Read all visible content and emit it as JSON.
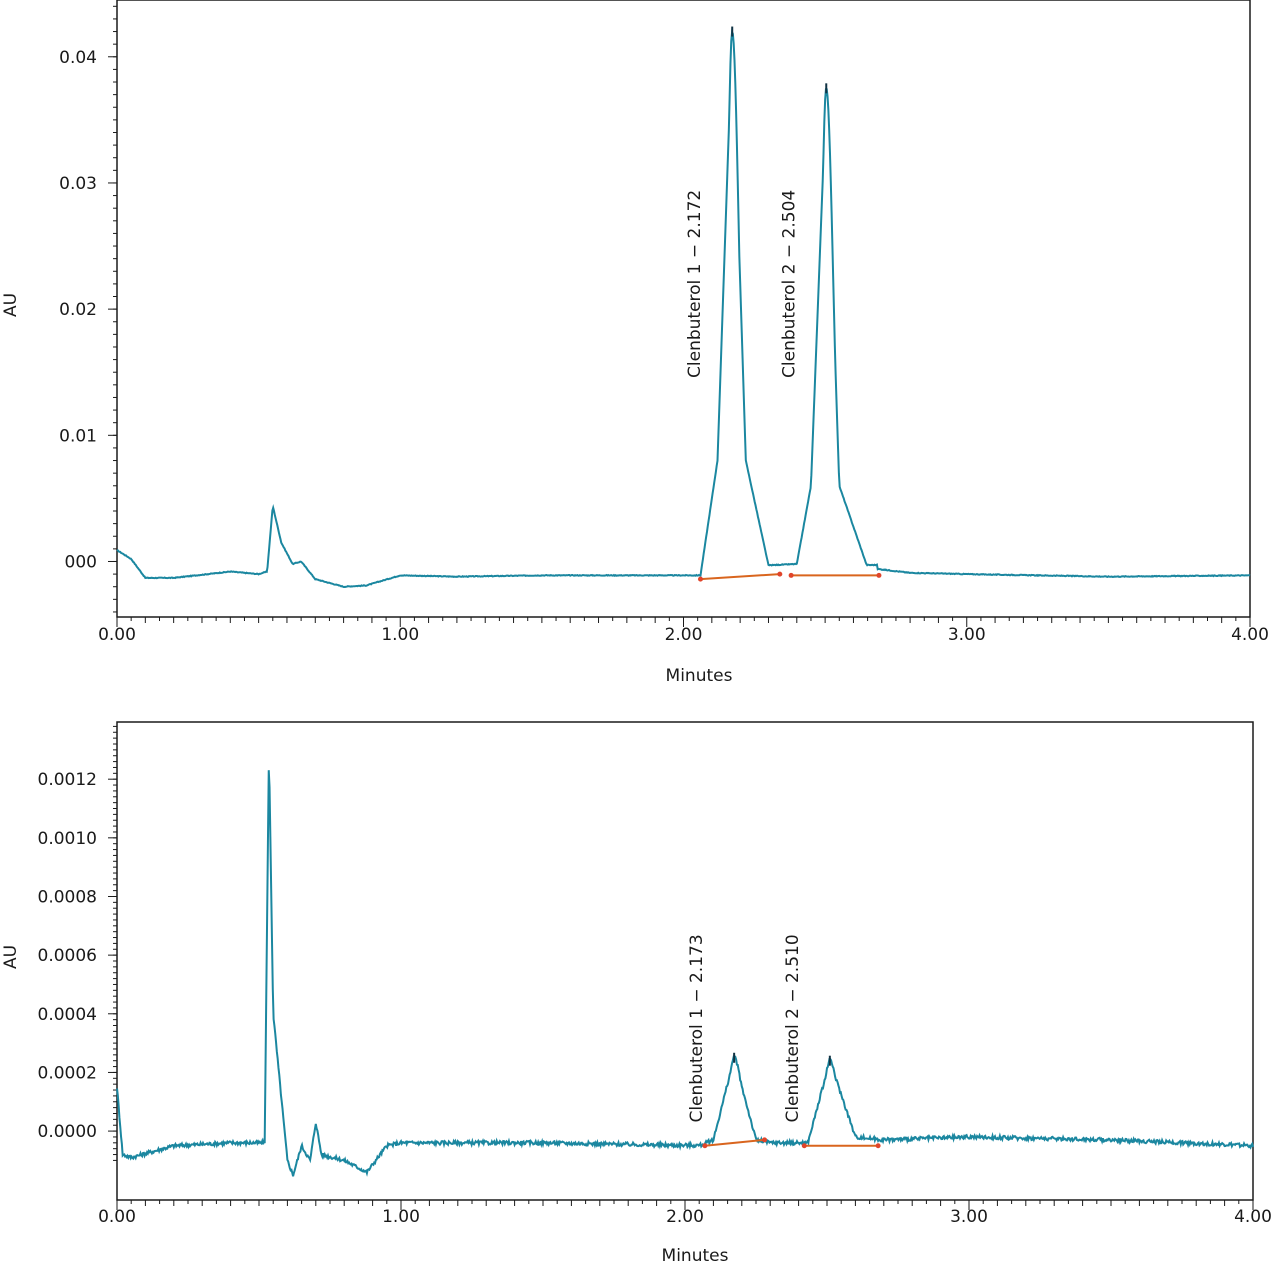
{
  "chart_data": [
    {
      "type": "line",
      "title": "",
      "xlabel": "Minutes",
      "ylabel": "AU",
      "xlim": [
        0.0,
        4.0
      ],
      "ylim": [
        -0.0044,
        0.0445
      ],
      "xticks": [
        0.0,
        1.0,
        2.0,
        3.0,
        4.0
      ],
      "xtick_labels": [
        "0.00",
        "1.00",
        "2.00",
        "3.00",
        "4.00"
      ],
      "yticks": [
        0.0,
        0.01,
        0.02,
        0.03,
        0.04
      ],
      "ytick_labels": [
        "000",
        "0.01",
        "0.02",
        "0.03",
        "0.04"
      ],
      "grid": false,
      "series": [
        {
          "color": "#1b87a0",
          "baseline_points": [
            [
              0.0,
              0.0009
            ],
            [
              0.05,
              0.0002
            ],
            [
              0.1,
              -0.0013
            ],
            [
              0.2,
              -0.0013
            ],
            [
              0.4,
              -0.0008
            ],
            [
              0.5,
              -0.001
            ],
            [
              0.53,
              -0.0008
            ],
            [
              0.55,
              0.0044
            ],
            [
              0.58,
              0.0015
            ],
            [
              0.62,
              -0.0002
            ],
            [
              0.65,
              0.0
            ],
            [
              0.7,
              -0.0014
            ],
            [
              0.8,
              -0.002
            ],
            [
              0.88,
              -0.0019
            ],
            [
              1.0,
              -0.0011
            ],
            [
              1.2,
              -0.0012
            ],
            [
              1.5,
              -0.0011
            ],
            [
              2.0,
              -0.0011
            ],
            [
              2.06,
              -0.0011
            ],
            [
              2.12,
              0.008
            ],
            [
              2.172,
              0.042
            ],
            [
              2.22,
              0.008
            ],
            [
              2.3,
              -0.0003
            ],
            [
              2.4,
              -0.0002
            ],
            [
              2.45,
              0.006
            ],
            [
              2.504,
              0.0375
            ],
            [
              2.55,
              0.006
            ],
            [
              2.65,
              -0.0005
            ],
            [
              2.8,
              -0.0009
            ],
            [
              3.0,
              -0.001
            ],
            [
              3.5,
              -0.0012
            ],
            [
              4.0,
              -0.0011
            ]
          ],
          "peaks": [
            {
              "rt": 2.172,
              "height": 0.042,
              "halfwidth": 0.03
            },
            {
              "rt": 2.504,
              "height": 0.0375,
              "halfwidth": 0.03
            }
          ]
        }
      ],
      "integration_baselines": [
        {
          "x": [
            2.06,
            2.34
          ],
          "y": [
            -0.0014,
            -0.001
          ],
          "color": "#d9651e"
        },
        {
          "x": [
            2.38,
            2.69
          ],
          "y": [
            -0.0011,
            -0.0011
          ],
          "color": "#d9651e"
        }
      ],
      "annotations": [
        {
          "text": "Clenbuterol 1 − 2.172",
          "x": 2.172,
          "y": 0.022
        },
        {
          "text": "Clenbuterol 2 − 2.504",
          "x": 2.504,
          "y": 0.022
        }
      ]
    },
    {
      "type": "line",
      "title": "",
      "xlabel": "Minutes",
      "ylabel": "AU",
      "xlim": [
        0.0,
        4.0
      ],
      "ylim": [
        -0.000235,
        0.001395
      ],
      "xticks": [
        0.0,
        1.0,
        2.0,
        3.0,
        4.0
      ],
      "xtick_labels": [
        "0.00",
        "1.00",
        "2.00",
        "3.00",
        "4.00"
      ],
      "yticks": [
        0.0,
        0.0002,
        0.0004,
        0.0006,
        0.0008,
        0.001,
        0.0012
      ],
      "ytick_labels": [
        "0.0000",
        "0.0002",
        "0.0004",
        "0.0006",
        "0.0008",
        "0.0010",
        "0.0012"
      ],
      "grid": false,
      "series": [
        {
          "color": "#1b87a0",
          "baseline_points": [
            [
              0.0,
              0.00015
            ],
            [
              0.02,
              -8e-05
            ],
            [
              0.05,
              -9e-05
            ],
            [
              0.2,
              -5e-05
            ],
            [
              0.4,
              -4e-05
            ],
            [
              0.52,
              -4e-05
            ],
            [
              0.535,
              0.0013
            ],
            [
              0.55,
              0.0004
            ],
            [
              0.58,
              0.0001
            ],
            [
              0.6,
              -0.0001
            ],
            [
              0.62,
              -0.00015
            ],
            [
              0.65,
              -5e-05
            ],
            [
              0.68,
              -0.0001
            ],
            [
              0.7,
              3e-05
            ],
            [
              0.72,
              -8e-05
            ],
            [
              0.8,
              -0.0001
            ],
            [
              0.88,
              -0.00014
            ],
            [
              0.95,
              -5e-05
            ],
            [
              1.0,
              -4e-05
            ],
            [
              1.5,
              -4e-05
            ],
            [
              2.05,
              -5e-05
            ],
            [
              2.1,
              -3e-05
            ],
            [
              2.173,
              0.00025
            ],
            [
              2.25,
              -3e-05
            ],
            [
              2.3,
              -4e-05
            ],
            [
              2.43,
              -5e-05
            ],
            [
              2.51,
              0.00024
            ],
            [
              2.6,
              -2e-05
            ],
            [
              2.7,
              -3e-05
            ],
            [
              3.0,
              -2e-05
            ],
            [
              3.5,
              -3e-05
            ],
            [
              4.0,
              -5e-05
            ]
          ],
          "peaks": [
            {
              "rt": 2.173,
              "height": 0.00025,
              "halfwidth": 0.035
            },
            {
              "rt": 2.51,
              "height": 0.00024,
              "halfwidth": 0.035
            }
          ]
        }
      ],
      "integration_baselines": [
        {
          "x": [
            2.07,
            2.28
          ],
          "y": [
            -5e-05,
            -3e-05
          ],
          "color": "#d9651e"
        },
        {
          "x": [
            2.42,
            2.68
          ],
          "y": [
            -5e-05,
            -5e-05
          ],
          "color": "#d9651e"
        }
      ],
      "annotations": [
        {
          "text": "Clenbuterol 1 − 2.173",
          "x": 2.173,
          "y": 0.00035
        },
        {
          "text": "Clenbuterol 2 − 2.510",
          "x": 2.51,
          "y": 0.00035
        }
      ]
    }
  ]
}
